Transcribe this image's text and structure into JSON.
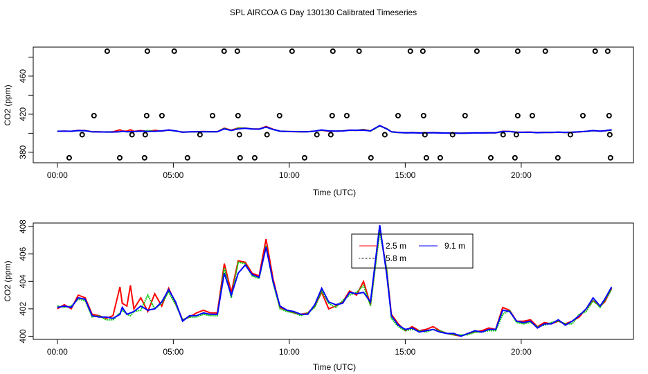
{
  "chart_data": [
    {
      "type": "scatter",
      "title": "SPL AIRCOA G  Day 130130  Calibrated Timeseries",
      "xlabel": "Time (UTC)",
      "ylabel": "CO2 (ppm)",
      "xlim": [
        -1.04,
        24.84
      ],
      "ylim": [
        369,
        490.5
      ],
      "x_ticks": [
        0,
        5,
        10,
        15,
        20
      ],
      "x_tick_labels": [
        "00:00",
        "05:00",
        "10:00",
        "15:00",
        "20:00"
      ],
      "y_ticks": [
        380,
        400,
        420,
        440,
        460,
        480
      ],
      "y_tick_labels": [
        "380",
        "",
        "420",
        "",
        "460",
        ""
      ],
      "points": [
        {
          "y": 486.2,
          "x": [
            2.15,
            3.88,
            5.04,
            7.19,
            7.76,
            10.12,
            11.88,
            13.01,
            15.22,
            15.76,
            18.09,
            19.85,
            21.04,
            23.19,
            23.73
          ]
        },
        {
          "y": 418.5,
          "x": [
            1.58,
            3.85,
            4.51,
            6.69,
            7.79,
            9.58,
            11.85,
            12.48,
            14.69,
            15.79,
            17.58,
            19.85,
            20.48,
            22.66,
            23.79
          ]
        },
        {
          "y": 398.5,
          "x": [
            1.07,
            3.22,
            3.79,
            6.15,
            7.85,
            9.04,
            11.19,
            11.79,
            14.12,
            15.85,
            17.04,
            19.22,
            19.79,
            22.12,
            23.82
          ]
        },
        {
          "y": 374.2,
          "x": [
            0.51,
            2.69,
            3.76,
            5.61,
            7.88,
            8.51,
            10.66,
            13.52,
            15.91,
            16.51,
            18.69,
            19.73,
            21.58,
            23.85
          ]
        }
      ],
      "lines": "same series as panel 2"
    },
    {
      "type": "line",
      "xlabel": "Time (UTC)",
      "ylabel": "CO2 (ppm)",
      "xlim": [
        -1.04,
        24.84
      ],
      "ylim": [
        399.77,
        408.26
      ],
      "x_ticks": [
        0,
        5,
        10,
        15,
        20
      ],
      "x_tick_labels": [
        "00:00",
        "05:00",
        "10:00",
        "15:00",
        "20:00"
      ],
      "y_ticks": [
        400,
        402,
        404,
        406,
        408
      ],
      "y_tick_labels": [
        "400",
        "402",
        "404",
        "406",
        "408"
      ],
      "legend_position": "top-center",
      "x": [
        0,
        0.3,
        0.6,
        0.9,
        1.2,
        1.5,
        1.8,
        2.1,
        2.4,
        2.7,
        2.8,
        3.0,
        3.15,
        3.3,
        3.6,
        3.9,
        4.2,
        4.5,
        4.8,
        5.1,
        5.4,
        5.7,
        6.0,
        6.3,
        6.6,
        6.9,
        7.2,
        7.5,
        7.8,
        8.1,
        8.4,
        8.7,
        9.0,
        9.3,
        9.6,
        9.9,
        10.2,
        10.5,
        10.8,
        11.1,
        11.4,
        11.7,
        12.0,
        12.3,
        12.6,
        12.9,
        13.2,
        13.5,
        13.9,
        14.2,
        14.4,
        14.7,
        15.0,
        15.3,
        15.6,
        15.9,
        16.2,
        16.5,
        16.8,
        17.1,
        17.4,
        17.7,
        18.0,
        18.3,
        18.6,
        18.9,
        19.2,
        19.5,
        19.8,
        20.1,
        20.4,
        20.7,
        21.0,
        21.3,
        21.6,
        21.9,
        22.2,
        22.5,
        22.8,
        23.1,
        23.4,
        23.6,
        23.9
      ],
      "series": [
        {
          "name": "2.5 m",
          "color": "#ff0000",
          "dash": "solid",
          "values": [
            402.0,
            402.3,
            402.0,
            403.0,
            402.8,
            401.6,
            401.5,
            401.3,
            401.5,
            403.6,
            402.4,
            402.2,
            403.7,
            402.0,
            402.8,
            401.8,
            403.1,
            402.2,
            403.5,
            402.4,
            401.2,
            401.4,
            401.7,
            401.9,
            401.7,
            401.7,
            405.3,
            403.2,
            405.5,
            405.4,
            404.6,
            404.4,
            407.1,
            404.2,
            402.1,
            401.9,
            401.7,
            401.6,
            401.7,
            402.2,
            403.2,
            402.0,
            402.2,
            402.5,
            403.3,
            403.0,
            404.0,
            402.3,
            407.9,
            404.8,
            401.6,
            400.9,
            400.4,
            400.7,
            400.4,
            400.5,
            400.7,
            400.4,
            400.2,
            400.1,
            400.0,
            400.2,
            400.3,
            400.4,
            400.6,
            400.5,
            402.1,
            401.9,
            401.1,
            401.1,
            401.2,
            400.7,
            401.0,
            400.9,
            401.1,
            400.9,
            401.1,
            401.4,
            402.0,
            402.6,
            402.2,
            402.5,
            403.5
          ]
        },
        {
          "name": "5.8 m",
          "color": "#00cc00",
          "dash": "dotted",
          "values": [
            402.2,
            402.1,
            402.2,
            402.7,
            402.6,
            401.4,
            401.5,
            401.2,
            401.2,
            401.7,
            401.9,
            401.6,
            401.5,
            401.8,
            401.9,
            403.0,
            402.0,
            402.4,
            403.2,
            402.3,
            401.2,
            401.4,
            401.4,
            401.6,
            401.5,
            401.5,
            405.0,
            402.8,
            405.4,
            405.3,
            404.4,
            404.2,
            406.6,
            403.9,
            402.0,
            401.8,
            401.7,
            401.5,
            401.7,
            402.1,
            403.3,
            402.4,
            402.1,
            402.6,
            403.0,
            403.2,
            403.7,
            402.2,
            407.6,
            404.9,
            401.3,
            400.7,
            400.4,
            400.5,
            400.4,
            400.3,
            400.5,
            400.4,
            400.2,
            400.1,
            400.1,
            400.1,
            400.3,
            400.3,
            400.4,
            400.4,
            401.6,
            401.9,
            401.0,
            400.9,
            401.0,
            400.7,
            400.8,
            401.0,
            401.1,
            400.9,
            400.9,
            401.6,
            401.8,
            402.6,
            402.1,
            402.6,
            403.4
          ]
        },
        {
          "name": "9.1 m",
          "color": "#0000ff",
          "dash": "solid",
          "values": [
            402.1,
            402.2,
            402.1,
            402.8,
            402.7,
            401.5,
            401.4,
            401.4,
            401.3,
            401.6,
            402.1,
            401.6,
            401.7,
            401.8,
            402.2,
            401.9,
            402.0,
            402.5,
            403.4,
            402.5,
            401.1,
            401.5,
            401.5,
            401.7,
            401.6,
            401.6,
            404.6,
            403.0,
            404.6,
            405.2,
            404.5,
            404.3,
            406.5,
            404.0,
            402.2,
            401.9,
            401.8,
            401.6,
            401.6,
            402.3,
            403.5,
            402.5,
            402.3,
            402.4,
            403.2,
            403.1,
            403.2,
            402.5,
            408.1,
            404.5,
            401.5,
            400.8,
            400.5,
            400.6,
            400.3,
            400.4,
            400.5,
            400.3,
            400.2,
            400.2,
            400.0,
            400.2,
            400.4,
            400.3,
            400.5,
            400.5,
            401.9,
            401.8,
            401.1,
            401.0,
            401.1,
            400.6,
            400.9,
            400.9,
            401.2,
            400.8,
            401.1,
            401.5,
            402.0,
            402.8,
            402.2,
            402.7,
            403.6
          ]
        }
      ]
    }
  ]
}
